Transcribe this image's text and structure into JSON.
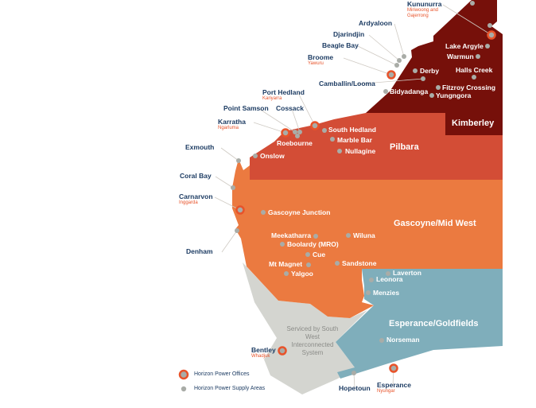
{
  "colors": {
    "kimberley": "#76100a",
    "pilbara": "#d34d36",
    "gascoyne_mid_west": "#eb7a40",
    "esperance_goldfields": "#7faebb",
    "south_west": "#d4d5d0",
    "office_ring": "#e8532a",
    "supply_dot": "#a9aca7",
    "label_dark": "#1d3c63"
  },
  "regions": [
    "Kimberley",
    "Pilbara",
    "Gascoyne/Mid West",
    "Esperance/Goldfields"
  ],
  "note": "Serviced by South West Interconnected System",
  "legend": {
    "offices": "Horizon Power Offices",
    "supply": "Horizon Power Supply Areas"
  },
  "places": [
    {
      "name": "Kununurra",
      "sub": "Miriwoong and Gajerrong",
      "type": "office"
    },
    {
      "name": "Ardyaloon",
      "type": "supply"
    },
    {
      "name": "Djarindjin",
      "type": "supply"
    },
    {
      "name": "Beagle Bay",
      "type": "supply"
    },
    {
      "name": "Broome",
      "sub": "Yawuru",
      "type": "office"
    },
    {
      "name": "Camballin/Looma",
      "type": "supply"
    },
    {
      "name": "Port Hedland",
      "sub": "Kariyarra",
      "type": "office"
    },
    {
      "name": "Point Samson",
      "type": "supply"
    },
    {
      "name": "Cossack",
      "type": "supply"
    },
    {
      "name": "Karratha",
      "sub": "Ngarluma",
      "type": "office"
    },
    {
      "name": "Exmouth",
      "type": "supply"
    },
    {
      "name": "Coral Bay",
      "type": "supply"
    },
    {
      "name": "Carnarvon",
      "sub": "Inggarda",
      "type": "office"
    },
    {
      "name": "Denham",
      "type": "supply"
    },
    {
      "name": "Bentley",
      "sub": "Whadjuk",
      "type": "office"
    },
    {
      "name": "Hopetoun",
      "type": "supply"
    },
    {
      "name": "Esperance",
      "sub": "Nyungar",
      "type": "office"
    },
    {
      "name": "Lake Argyle",
      "type": "supply"
    },
    {
      "name": "Warmun",
      "type": "supply"
    },
    {
      "name": "Halls Creek",
      "type": "supply"
    },
    {
      "name": "Derby",
      "type": "supply"
    },
    {
      "name": "Fitzroy Crossing",
      "type": "supply"
    },
    {
      "name": "Bidyadanga",
      "type": "supply"
    },
    {
      "name": "Yungngora",
      "type": "supply"
    },
    {
      "name": "South Hedland",
      "type": "supply"
    },
    {
      "name": "Marble Bar",
      "type": "supply"
    },
    {
      "name": "Roebourne",
      "type": "supply"
    },
    {
      "name": "Nullagine",
      "type": "supply"
    },
    {
      "name": "Onslow",
      "type": "supply"
    },
    {
      "name": "Gascoyne Junction",
      "type": "supply"
    },
    {
      "name": "Meekatharra",
      "type": "supply"
    },
    {
      "name": "Wiluna",
      "type": "supply"
    },
    {
      "name": "Boolardy (MRO)",
      "type": "supply"
    },
    {
      "name": "Cue",
      "type": "supply"
    },
    {
      "name": "Mt Magnet",
      "type": "supply"
    },
    {
      "name": "Sandstone",
      "type": "supply"
    },
    {
      "name": "Yalgoo",
      "type": "supply"
    },
    {
      "name": "Laverton",
      "type": "supply"
    },
    {
      "name": "Leonora",
      "type": "supply"
    },
    {
      "name": "Menzies",
      "type": "supply"
    },
    {
      "name": "Norseman",
      "type": "supply"
    }
  ]
}
